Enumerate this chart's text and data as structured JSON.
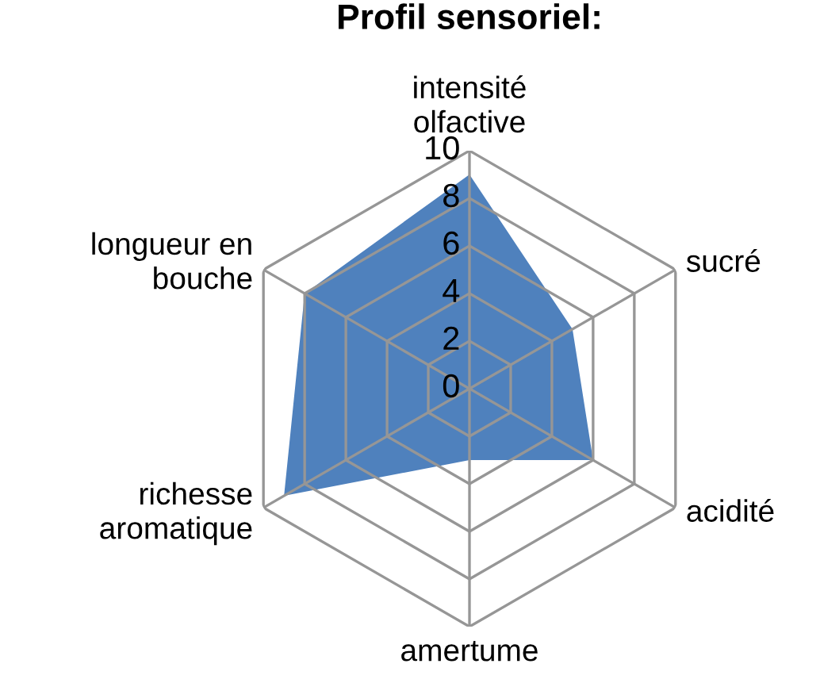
{
  "chart_data": {
    "type": "radar",
    "title": "Profil sensoriel:",
    "categories": [
      "intensité\nolfactive",
      "sucré",
      "acidité",
      "amertume",
      "richesse\naromatique",
      "longueur en\nbouche"
    ],
    "series": [
      {
        "color": "#4f81bd",
        "values": [
          9,
          5,
          6,
          3,
          9,
          8
        ]
      }
    ],
    "ylim": [
      0,
      10
    ],
    "yticks": [
      0,
      2,
      4,
      6,
      8,
      10
    ],
    "grid": true,
    "legend": false
  }
}
